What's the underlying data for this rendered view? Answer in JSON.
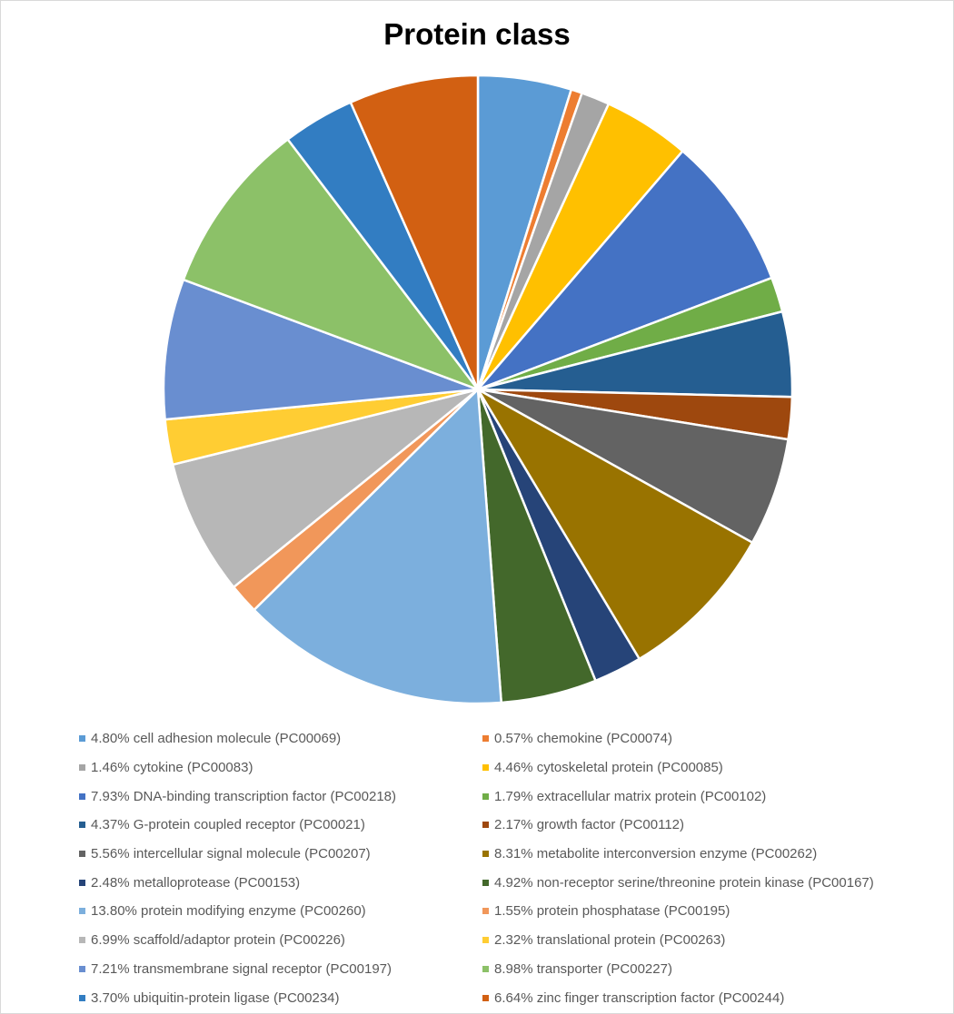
{
  "chart_data": {
    "type": "pie",
    "title": "Protein class",
    "legend_position": "bottom",
    "slices": [
      {
        "label": "4.80% cell adhesion molecule (PC00069)",
        "value": 4.8,
        "color": "#5B9BD5"
      },
      {
        "label": "0.57% chemokine (PC00074)",
        "value": 0.57,
        "color": "#ED7D31"
      },
      {
        "label": "1.46% cytokine (PC00083)",
        "value": 1.46,
        "color": "#A5A5A5"
      },
      {
        "label": "4.46% cytoskeletal protein (PC00085)",
        "value": 4.46,
        "color": "#FFC000"
      },
      {
        "label": "7.93% DNA-binding transcription factor (PC00218)",
        "value": 7.93,
        "color": "#4472C4"
      },
      {
        "label": "1.79% extracellular matrix protein (PC00102)",
        "value": 1.79,
        "color": "#70AD47"
      },
      {
        "label": "4.37% G-protein coupled receptor (PC00021)",
        "value": 4.37,
        "color": "#255E91"
      },
      {
        "label": "2.17% growth factor (PC00112)",
        "value": 2.17,
        "color": "#9E480E"
      },
      {
        "label": "5.56% intercellular signal molecule (PC00207)",
        "value": 5.56,
        "color": "#636363"
      },
      {
        "label": "8.31% metabolite interconversion enzyme (PC00262)",
        "value": 8.31,
        "color": "#997300"
      },
      {
        "label": "2.48% metalloprotease (PC00153)",
        "value": 2.48,
        "color": "#264478"
      },
      {
        "label": "4.92% non-receptor serine/threonine protein kinase (PC00167)",
        "value": 4.92,
        "color": "#43682B"
      },
      {
        "label": "13.80% protein modifying enzyme (PC00260)",
        "value": 13.8,
        "color": "#7CAFDD"
      },
      {
        "label": "1.55% protein phosphatase (PC00195)",
        "value": 1.55,
        "color": "#F1975A"
      },
      {
        "label": "6.99% scaffold/adaptor protein (PC00226)",
        "value": 6.99,
        "color": "#B7B7B7"
      },
      {
        "label": "2.32% translational protein (PC00263)",
        "value": 2.32,
        "color": "#FFCD33"
      },
      {
        "label": "7.21% transmembrane signal receptor (PC00197)",
        "value": 7.21,
        "color": "#698ED0"
      },
      {
        "label": "8.98% transporter (PC00227)",
        "value": 8.98,
        "color": "#8CC168"
      },
      {
        "label": "3.70% ubiquitin-protein ligase (PC00234)",
        "value": 3.7,
        "color": "#327DC2"
      },
      {
        "label": "6.64% zinc finger transcription factor (PC00244)",
        "value": 6.64,
        "color": "#D26012"
      }
    ]
  }
}
